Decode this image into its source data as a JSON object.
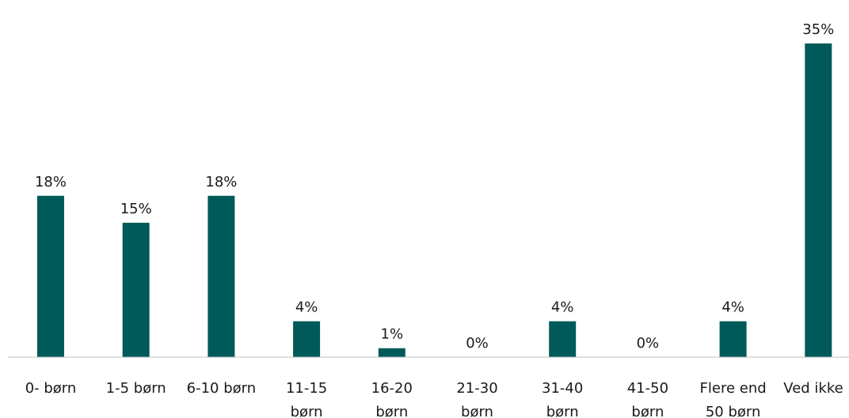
{
  "chart_data": {
    "type": "bar",
    "categories": [
      "0- børn",
      "1-5 børn",
      "6-10 børn",
      "11-15 børn",
      "16-20 børn",
      "21-30 børn",
      "31-40 børn",
      "41-50 børn",
      "Flere end 50 børn",
      "Ved ikke"
    ],
    "category_lines": [
      [
        "0- børn"
      ],
      [
        "1-5 børn"
      ],
      [
        "6-10 børn"
      ],
      [
        "11-15",
        "børn"
      ],
      [
        "16-20",
        "børn"
      ],
      [
        "21-30",
        "børn"
      ],
      [
        "31-40",
        "børn"
      ],
      [
        "41-50",
        "børn"
      ],
      [
        "Flere end",
        "50 børn"
      ],
      [
        "Ved ikke"
      ]
    ],
    "values": [
      18,
      15,
      18,
      4,
      1,
      0,
      4,
      0,
      4,
      35
    ],
    "value_labels": [
      "18%",
      "15%",
      "18%",
      "4%",
      "1%",
      "0%",
      "4%",
      "0%",
      "4%",
      "35%"
    ],
    "unit": "%",
    "ylim": [
      0,
      35
    ],
    "bar_color": "#005a5a",
    "axis_color": "#bfbfbf",
    "grid": false,
    "legend": "none"
  }
}
